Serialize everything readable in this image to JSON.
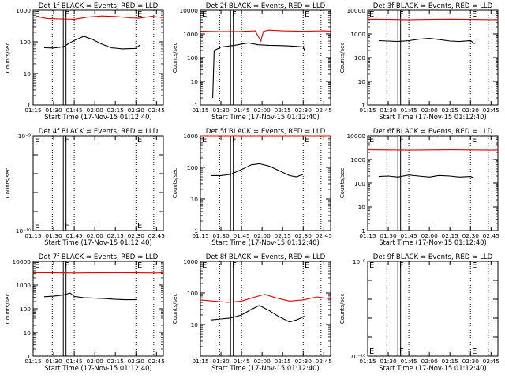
{
  "colors": {
    "events": "#000000",
    "lld": "#e00000",
    "axes": "#000000",
    "background": "#ffffff"
  },
  "chart_data": [
    {
      "id": 1,
      "type": "line",
      "title": "Det 1f BLACK = Events, RED = LLD",
      "xlabel": "Start Time (17-Nov-15 01:12:40)",
      "ylabel": "Counts/sec",
      "xlim": [
        "01:15",
        "02:50"
      ],
      "x_ticks": [
        "01:15",
        "01:30",
        "01:45",
        "02:00",
        "02:15",
        "02:30",
        "02:45"
      ],
      "yscale": "log",
      "ylim": [
        1,
        1000
      ],
      "y_ticks": [
        "1",
        "10",
        "100",
        "1000"
      ],
      "markers": [
        {
          "label": "F",
          "time": "01:38"
        },
        {
          "label": "E",
          "time": "02:31"
        }
      ],
      "series": [
        {
          "name": "LLD",
          "x": [
            "01:17",
            "01:25",
            "01:35",
            "01:45",
            "01:55",
            "02:05",
            "02:15",
            "02:25",
            "02:32",
            "02:42",
            "02:50"
          ],
          "y": [
            640,
            550,
            530,
            520,
            610,
            660,
            640,
            580,
            560,
            650,
            580
          ]
        },
        {
          "name": "Events",
          "x": [
            "01:23",
            "01:30",
            "01:37",
            "01:45",
            "01:52",
            "01:58",
            "02:05",
            "02:12",
            "02:20",
            "02:30",
            "02:33"
          ],
          "y": [
            65,
            64,
            70,
            110,
            150,
            120,
            85,
            65,
            60,
            62,
            80
          ]
        }
      ]
    },
    {
      "id": 2,
      "type": "line",
      "title": "Det 2f BLACK = Events, RED = LLD",
      "xlabel": "Start Time (17-Nov-15 01:12:40)",
      "ylabel": "Counts/sec",
      "xlim": [
        "01:15",
        "02:50"
      ],
      "x_ticks": [
        "01:15",
        "01:30",
        "01:45",
        "02:00",
        "02:15",
        "02:30",
        "02:45"
      ],
      "yscale": "log",
      "ylim": [
        1,
        10000
      ],
      "y_ticks": [
        "1",
        "10",
        "100",
        "1000",
        "10000"
      ],
      "markers": [
        {
          "label": "F",
          "time": "01:38"
        },
        {
          "label": "E",
          "time": "02:31"
        }
      ],
      "series": [
        {
          "name": "LLD",
          "x": [
            "01:15",
            "01:30",
            "01:45",
            "01:55",
            "01:59",
            "02:01",
            "02:05",
            "02:15",
            "02:30",
            "02:45",
            "02:50"
          ],
          "y": [
            1300,
            1250,
            1280,
            1350,
            500,
            1300,
            1450,
            1350,
            1300,
            1350,
            1320
          ]
        },
        {
          "name": "Events",
          "x": [
            "01:24",
            "01:25",
            "01:30",
            "01:40",
            "01:50",
            "01:57",
            "02:05",
            "02:15",
            "02:25",
            "02:30",
            "02:31"
          ],
          "y": [
            2,
            200,
            280,
            330,
            420,
            350,
            330,
            320,
            300,
            280,
            200
          ]
        }
      ]
    },
    {
      "id": 3,
      "type": "line",
      "title": "Det 3f BLACK = Events, RED = LLD",
      "xlabel": "Start Time (17-Nov-15 01:12:40)",
      "ylabel": "Counts/sec",
      "xlim": [
        "01:15",
        "02:50"
      ],
      "x_ticks": [
        "01:15",
        "01:30",
        "01:45",
        "02:00",
        "02:15",
        "02:30",
        "02:45"
      ],
      "yscale": "log",
      "ylim": [
        1,
        10000
      ],
      "y_ticks": [
        "1",
        "10",
        "100",
        "1000",
        "10000"
      ],
      "markers": [
        {
          "label": "F",
          "time": "01:38"
        },
        {
          "label": "E",
          "time": "02:31"
        }
      ],
      "series": [
        {
          "name": "LLD",
          "x": [
            "01:15",
            "01:30",
            "01:45",
            "02:00",
            "02:15",
            "02:30",
            "02:45",
            "02:50"
          ],
          "y": [
            4200,
            4100,
            4000,
            4100,
            4200,
            4100,
            4000,
            4050
          ]
        },
        {
          "name": "Events",
          "x": [
            "01:23",
            "01:30",
            "01:37",
            "01:45",
            "01:52",
            "02:00",
            "02:07",
            "02:15",
            "02:22",
            "02:30",
            "02:33"
          ],
          "y": [
            520,
            500,
            480,
            520,
            600,
            650,
            580,
            500,
            480,
            520,
            380
          ]
        }
      ]
    },
    {
      "id": 4,
      "type": "line",
      "title": "Det 4f BLACK = Events, RED = LLD",
      "xlabel": "Start Time (17-Nov-15 01:12:40)",
      "ylabel": "Counts/sec",
      "xlim": [
        "01:15",
        "02:50"
      ],
      "x_ticks": [
        "01:15",
        "01:30",
        "01:45",
        "02:00",
        "02:15",
        "02:30",
        "02:45"
      ],
      "yscale": "log",
      "ylim": [
        1e-10,
        1e-09
      ],
      "y_ticks": [
        "10⁻¹⁰",
        "",
        "",
        "",
        "",
        "10⁻⁹"
      ],
      "markers": [
        {
          "label": "F",
          "time": "01:38"
        },
        {
          "label": "E",
          "time": "02:31"
        }
      ],
      "series": []
    },
    {
      "id": 5,
      "type": "line",
      "title": "Det 5f BLACK = Events, RED = LLD",
      "xlabel": "Start Time (17-Nov-15 01:12:40)",
      "ylabel": "Counts/sec",
      "xlim": [
        "01:15",
        "02:50"
      ],
      "x_ticks": [
        "01:15",
        "01:30",
        "01:45",
        "02:00",
        "02:15",
        "02:30",
        "02:45"
      ],
      "yscale": "log",
      "ylim": [
        1,
        1000
      ],
      "y_ticks": [
        "1",
        "10",
        "100",
        "1000"
      ],
      "markers": [
        {
          "label": "F",
          "time": "01:38"
        },
        {
          "label": "E",
          "time": "02:31"
        }
      ],
      "series": [
        {
          "name": "LLD",
          "x": [
            "01:15",
            "02:50"
          ],
          "y": [
            1000,
            1000
          ]
        },
        {
          "name": "Events",
          "x": [
            "01:23",
            "01:30",
            "01:37",
            "01:45",
            "01:52",
            "01:58",
            "02:05",
            "02:12",
            "02:20",
            "02:25",
            "02:30"
          ],
          "y": [
            55,
            55,
            60,
            85,
            120,
            130,
            110,
            80,
            55,
            50,
            60
          ]
        }
      ]
    },
    {
      "id": 6,
      "type": "line",
      "title": "Det 6f BLACK = Events, RED = LLD",
      "xlabel": "Start Time (17-Nov-15 01:12:40)",
      "ylabel": "Counts/sec",
      "xlim": [
        "01:15",
        "02:50"
      ],
      "x_ticks": [
        "01:15",
        "01:30",
        "01:45",
        "02:00",
        "02:15",
        "02:30",
        "02:45"
      ],
      "yscale": "log",
      "ylim": [
        1,
        10000
      ],
      "y_ticks": [
        "1",
        "10",
        "100",
        "1000",
        "10000"
      ],
      "markers": [
        {
          "label": "F",
          "time": "01:38"
        },
        {
          "label": "E",
          "time": "02:31"
        }
      ],
      "series": [
        {
          "name": "LLD",
          "x": [
            "01:15",
            "01:30",
            "01:45",
            "02:00",
            "02:15",
            "02:30",
            "02:45",
            "02:50"
          ],
          "y": [
            2600,
            2550,
            2500,
            2550,
            2600,
            2550,
            2500,
            2550
          ]
        },
        {
          "name": "Events",
          "x": [
            "01:23",
            "01:30",
            "01:37",
            "01:45",
            "01:52",
            "02:00",
            "02:07",
            "02:15",
            "02:22",
            "02:30",
            "02:33"
          ],
          "y": [
            190,
            200,
            180,
            220,
            200,
            180,
            210,
            200,
            180,
            190,
            160
          ]
        }
      ]
    },
    {
      "id": 7,
      "type": "line",
      "title": "Det 7f BLACK = Events, RED = LLD",
      "xlabel": "Start Time (17-Nov-15 01:12:40)",
      "ylabel": "Counts/sec",
      "xlim": [
        "01:15",
        "02:50"
      ],
      "x_ticks": [
        "01:15",
        "01:30",
        "01:45",
        "02:00",
        "02:15",
        "02:30",
        "02:45"
      ],
      "yscale": "log",
      "ylim": [
        1,
        10000
      ],
      "y_ticks": [
        "1",
        "10",
        "100",
        "1000",
        "10000"
      ],
      "markers": [
        {
          "label": "F",
          "time": "01:38"
        },
        {
          "label": "E",
          "time": "02:31"
        }
      ],
      "series": [
        {
          "name": "LLD",
          "x": [
            "01:15",
            "01:30",
            "01:45",
            "02:00",
            "02:15",
            "02:30",
            "02:45",
            "02:50"
          ],
          "y": [
            3300,
            3250,
            3200,
            3250,
            3300,
            3250,
            3200,
            3250
          ]
        },
        {
          "name": "Events",
          "x": [
            "01:23",
            "01:30",
            "01:37",
            "01:42",
            "01:45",
            "01:52",
            "02:00",
            "02:07",
            "02:15",
            "02:22",
            "02:31"
          ],
          "y": [
            320,
            340,
            380,
            460,
            330,
            290,
            280,
            270,
            250,
            240,
            240
          ]
        }
      ]
    },
    {
      "id": 8,
      "type": "line",
      "title": "Det 8f BLACK = Events, RED = LLD",
      "xlabel": "Start Time (17-Nov-15 01:12:40)",
      "ylabel": "Counts/sec",
      "xlim": [
        "01:15",
        "02:50"
      ],
      "x_ticks": [
        "01:15",
        "01:30",
        "01:45",
        "02:00",
        "02:15",
        "02:30",
        "02:45"
      ],
      "yscale": "log",
      "ylim": [
        1,
        1000
      ],
      "y_ticks": [
        "1",
        "10",
        "100",
        "1000"
      ],
      "markers": [
        {
          "label": "F",
          "time": "01:38"
        },
        {
          "label": "E",
          "time": "02:31"
        }
      ],
      "series": [
        {
          "name": "LLD",
          "x": [
            "01:15",
            "01:25",
            "01:35",
            "01:45",
            "01:55",
            "02:02",
            "02:10",
            "02:20",
            "02:30",
            "02:40",
            "02:50"
          ],
          "y": [
            60,
            55,
            50,
            55,
            75,
            90,
            70,
            55,
            60,
            75,
            65
          ]
        },
        {
          "name": "Events",
          "x": [
            "01:23",
            "01:30",
            "01:37",
            "01:45",
            "01:52",
            "01:58",
            "02:05",
            "02:12",
            "02:20",
            "02:25",
            "02:31"
          ],
          "y": [
            14,
            15,
            16,
            20,
            30,
            40,
            28,
            18,
            12,
            14,
            18
          ]
        }
      ]
    },
    {
      "id": 9,
      "type": "line",
      "title": "Det 9f BLACK = Events, RED = LLD",
      "xlabel": "Start Time (17-Nov-15 01:12:40)",
      "ylabel": "Counts/sec",
      "xlim": [
        "01:15",
        "02:50"
      ],
      "x_ticks": [
        "01:15",
        "01:30",
        "01:45",
        "02:00",
        "02:15",
        "02:30",
        "02:45"
      ],
      "yscale": "log",
      "ylim": [
        1e-10,
        1e-09
      ],
      "y_ticks": [
        "10⁻¹⁰",
        "",
        "",
        "",
        "",
        "10⁻⁹"
      ],
      "markers": [
        {
          "label": "F",
          "time": "01:38"
        },
        {
          "label": "E",
          "time": "02:31"
        }
      ],
      "series": []
    }
  ]
}
